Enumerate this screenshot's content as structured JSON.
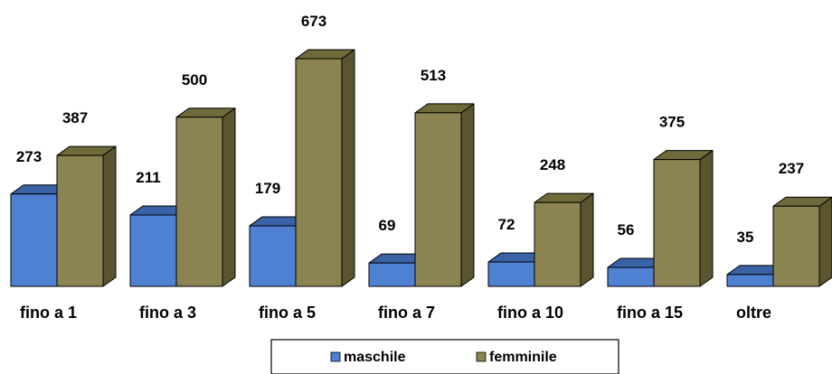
{
  "chart_data": {
    "type": "bar",
    "categories": [
      "fino a 1",
      "fino a 3",
      "fino a 5",
      "fino a 7",
      "fino a 10",
      "fino a 15",
      "oltre"
    ],
    "series": [
      {
        "name": "maschile",
        "values": [
          273,
          211,
          179,
          69,
          72,
          56,
          35
        ]
      },
      {
        "name": "femminile",
        "values": [
          387,
          500,
          673,
          513,
          248,
          375,
          237
        ]
      }
    ],
    "title": "",
    "xlabel": "",
    "ylabel": "",
    "ylim": [
      0,
      700
    ],
    "grid": false,
    "legend_position": "bottom",
    "style": "3d",
    "colors": {
      "maschile": {
        "front": "#4f81d3",
        "top": "#3a62a6",
        "side": "#2d4e86"
      },
      "femminile": {
        "front": "#8c8450",
        "top": "#6e6a3a",
        "side": "#5a552e"
      }
    }
  }
}
